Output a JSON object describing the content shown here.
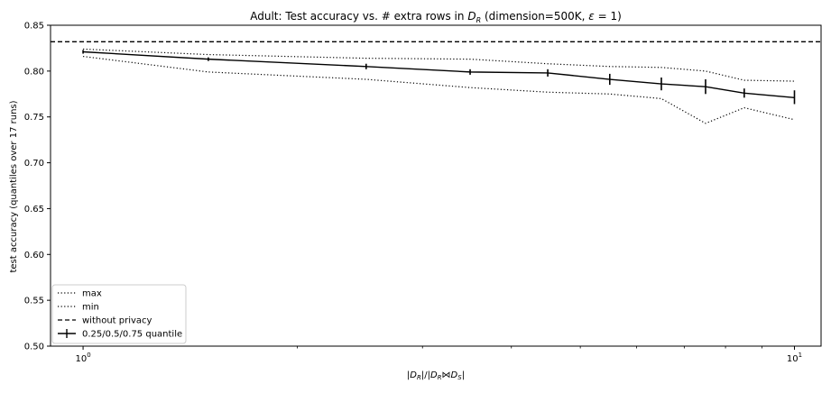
{
  "chart_data": {
    "type": "line",
    "title_parts": {
      "prefix": "Adult: Test accuracy vs. # extra rows in ",
      "var_main": "D",
      "var_sub": "R",
      "middle": " (dimension=500K, ",
      "epsilon": "ε",
      "suffix": " = 1)"
    },
    "xlabel_parts": {
      "a": "|",
      "d1": "D",
      "s1": "R",
      "b": "|/|",
      "d2": "D",
      "s2": "R",
      "join": "⋈",
      "d3": "D",
      "s3": "S",
      "c": "|"
    },
    "ylabel": "test accuracy (quantiles over 17 runs)",
    "x_scale": "log",
    "xlim": [
      0.9,
      10.9
    ],
    "ylim": [
      0.5,
      0.85
    ],
    "y_ticks": [
      {
        "value": 0.5,
        "label": "0.50"
      },
      {
        "value": 0.55,
        "label": "0.55"
      },
      {
        "value": 0.6,
        "label": "0.60"
      },
      {
        "value": 0.65,
        "label": "0.65"
      },
      {
        "value": 0.7,
        "label": "0.70"
      },
      {
        "value": 0.75,
        "label": "0.75"
      },
      {
        "value": 0.8,
        "label": "0.80"
      },
      {
        "value": 0.85,
        "label": "0.85"
      }
    ],
    "x_major_ticks": [
      {
        "value": 1,
        "base": "10",
        "exp": "0"
      },
      {
        "value": 10,
        "base": "10",
        "exp": "1"
      }
    ],
    "x_minor_ticks": [
      2,
      3,
      4,
      5,
      6,
      7,
      8,
      9
    ],
    "x": [
      1,
      1.5,
      2.5,
      3.5,
      4.5,
      5.5,
      6.5,
      7.5,
      8.5,
      10
    ],
    "series": [
      {
        "name": "max",
        "style": "dotted",
        "color": "#000000",
        "values": [
          0.824,
          0.818,
          0.814,
          0.813,
          0.808,
          0.805,
          0.804,
          0.8,
          0.79,
          0.789
        ]
      },
      {
        "name": "min",
        "style": "dotted",
        "color": "#000000",
        "values": [
          0.816,
          0.799,
          0.791,
          0.782,
          0.777,
          0.775,
          0.77,
          0.743,
          0.76,
          0.747
        ]
      },
      {
        "name": "without privacy",
        "style": "dashed",
        "color": "#000000",
        "constant": 0.832
      },
      {
        "name": "0.25/0.5/0.75 quantile",
        "style": "solid-errorbar",
        "color": "#000000",
        "values": [
          0.821,
          0.813,
          0.805,
          0.799,
          0.798,
          0.791,
          0.786,
          0.783,
          0.776,
          0.771
        ],
        "lower": [
          0.819,
          0.811,
          0.802,
          0.796,
          0.794,
          0.785,
          0.779,
          0.775,
          0.771,
          0.764
        ],
        "upper": [
          0.823,
          0.815,
          0.808,
          0.802,
          0.802,
          0.797,
          0.793,
          0.791,
          0.781,
          0.779
        ]
      }
    ],
    "legend_position": "lower-left",
    "grid": false
  }
}
